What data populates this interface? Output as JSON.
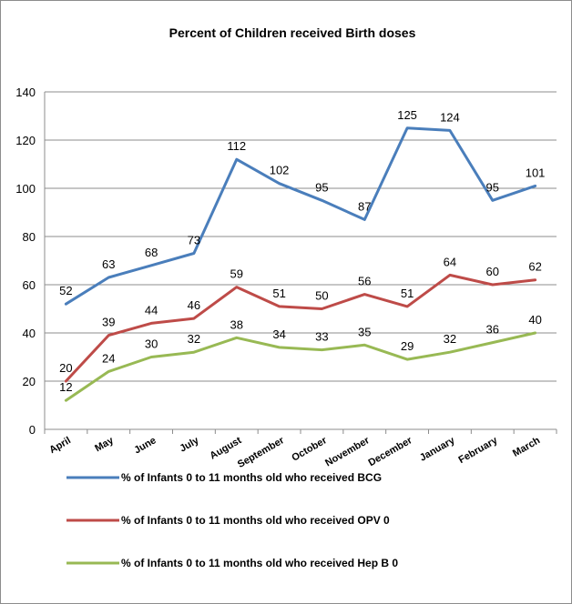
{
  "chart_data": {
    "type": "line",
    "title": "Percent of Children received Birth doses",
    "xlabel": "",
    "ylabel": "",
    "categories": [
      "April",
      "May",
      "June",
      "July",
      "August",
      "September",
      "October",
      "November",
      "December",
      "January",
      "February",
      "March"
    ],
    "ylim": [
      0,
      140
    ],
    "yticks": [
      0,
      20,
      40,
      60,
      80,
      100,
      120,
      140
    ],
    "grid": true,
    "legend_position": "bottom",
    "series": [
      {
        "name": "% of Infants 0 to 11 months old who received BCG",
        "color": "#4a7ebb",
        "values": [
          52,
          63,
          68,
          73,
          112,
          102,
          95,
          87,
          125,
          124,
          95,
          101
        ]
      },
      {
        "name": "% of Infants 0 to 11 months old who received OPV 0",
        "color": "#be4b48",
        "values": [
          20,
          39,
          44,
          46,
          59,
          51,
          50,
          56,
          51,
          64,
          60,
          62
        ]
      },
      {
        "name": "% of Infants 0 to 11 months old who received Hep B 0",
        "color": "#98b954",
        "values": [
          12,
          24,
          30,
          32,
          38,
          34,
          33,
          35,
          29,
          32,
          36,
          40
        ]
      }
    ]
  }
}
